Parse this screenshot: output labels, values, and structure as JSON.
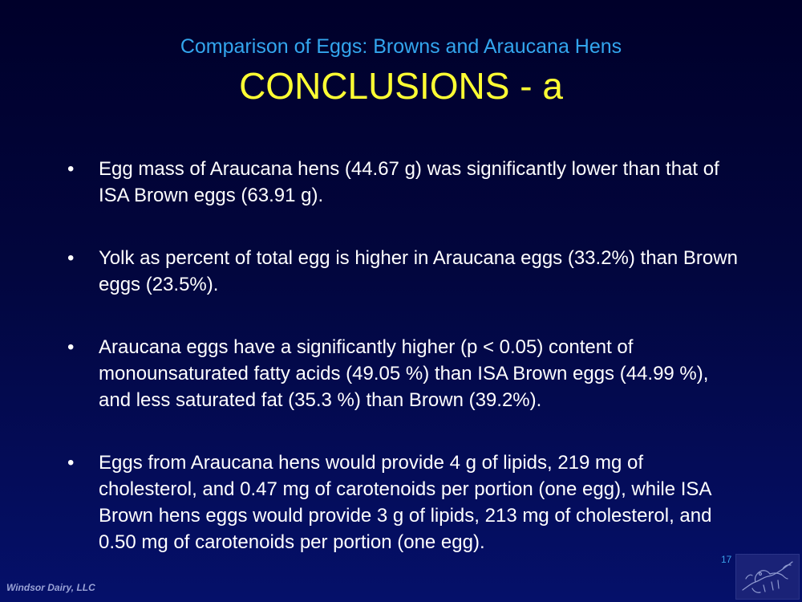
{
  "slide": {
    "subtitle": "Comparison of Eggs: Browns and Araucana Hens",
    "title": "CONCLUSIONS - a",
    "bullet_symbol": "•",
    "bullets": [
      {
        "text": "Egg mass of Araucana hens (44.67 g) was significantly lower than that of ISA Brown eggs (63.91 g)."
      },
      {
        "text": "Yolk as percent of total egg is higher in Araucana eggs (33.2%) than Brown eggs (23.5%)."
      },
      {
        "text": "Araucana eggs have a significantly higher (p < 0.05) content of monounsaturated fatty acids (49.05 %) than ISA Brown eggs (44.99 %), and less saturated fat (35.3 %) than Brown (39.2%)."
      },
      {
        "text": "Eggs from Araucana hens would provide 4 g of lipids, 219 mg of cholesterol, and 0.47 mg of carotenoids per portion (one egg), while ISA Brown hens eggs would provide 3 g of lipids, 213 mg of cholesterol, and 0.50 mg of carotenoids per portion (one egg)."
      }
    ],
    "page_number": "17",
    "footer": "Windsor Dairy, LLC",
    "logo_icon": "farm-animals-logo-icon"
  }
}
